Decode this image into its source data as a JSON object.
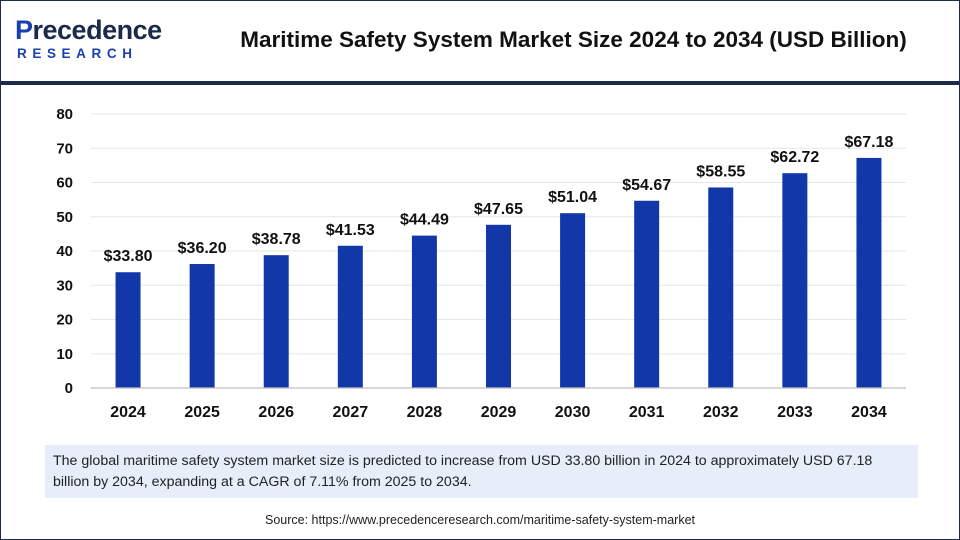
{
  "header": {
    "logo_top_first": "P",
    "logo_top_rest": "recedence",
    "logo_bottom": "RESEARCH",
    "title": "Maritime Safety System Market Size 2024 to 2034 (USD Billion)"
  },
  "chart_data": {
    "type": "bar",
    "title": "Maritime Safety System Market Size 2024 to 2034 (USD Billion)",
    "categories": [
      "2024",
      "2025",
      "2026",
      "2027",
      "2028",
      "2029",
      "2030",
      "2031",
      "2032",
      "2033",
      "2034"
    ],
    "values": [
      33.8,
      36.2,
      38.78,
      41.53,
      44.49,
      47.65,
      51.04,
      54.67,
      58.55,
      62.72,
      67.18
    ],
    "data_labels": [
      "$33.80",
      "$36.20",
      "$38.78",
      "$41.53",
      "$44.49",
      "$47.65",
      "$51.04",
      "$54.67",
      "$58.55",
      "$62.72",
      "$67.18"
    ],
    "yticks": [
      "0",
      "10",
      "20",
      "30",
      "40",
      "50",
      "60",
      "70",
      "80"
    ],
    "ylim": [
      0,
      80
    ],
    "grid": true,
    "legend": "none",
    "bar_color": "#1237a8",
    "grid_color": "#e6e6e6"
  },
  "summary": "The global maritime safety system market size is predicted to increase from USD 33.80 billion in 2024 to approximately USD 67.18 billion by 2034, expanding at a CAGR of 7.11% from 2025 to 2034.",
  "source": "Source: https://www.precedenceresearch.com/maritime-safety-system-market"
}
